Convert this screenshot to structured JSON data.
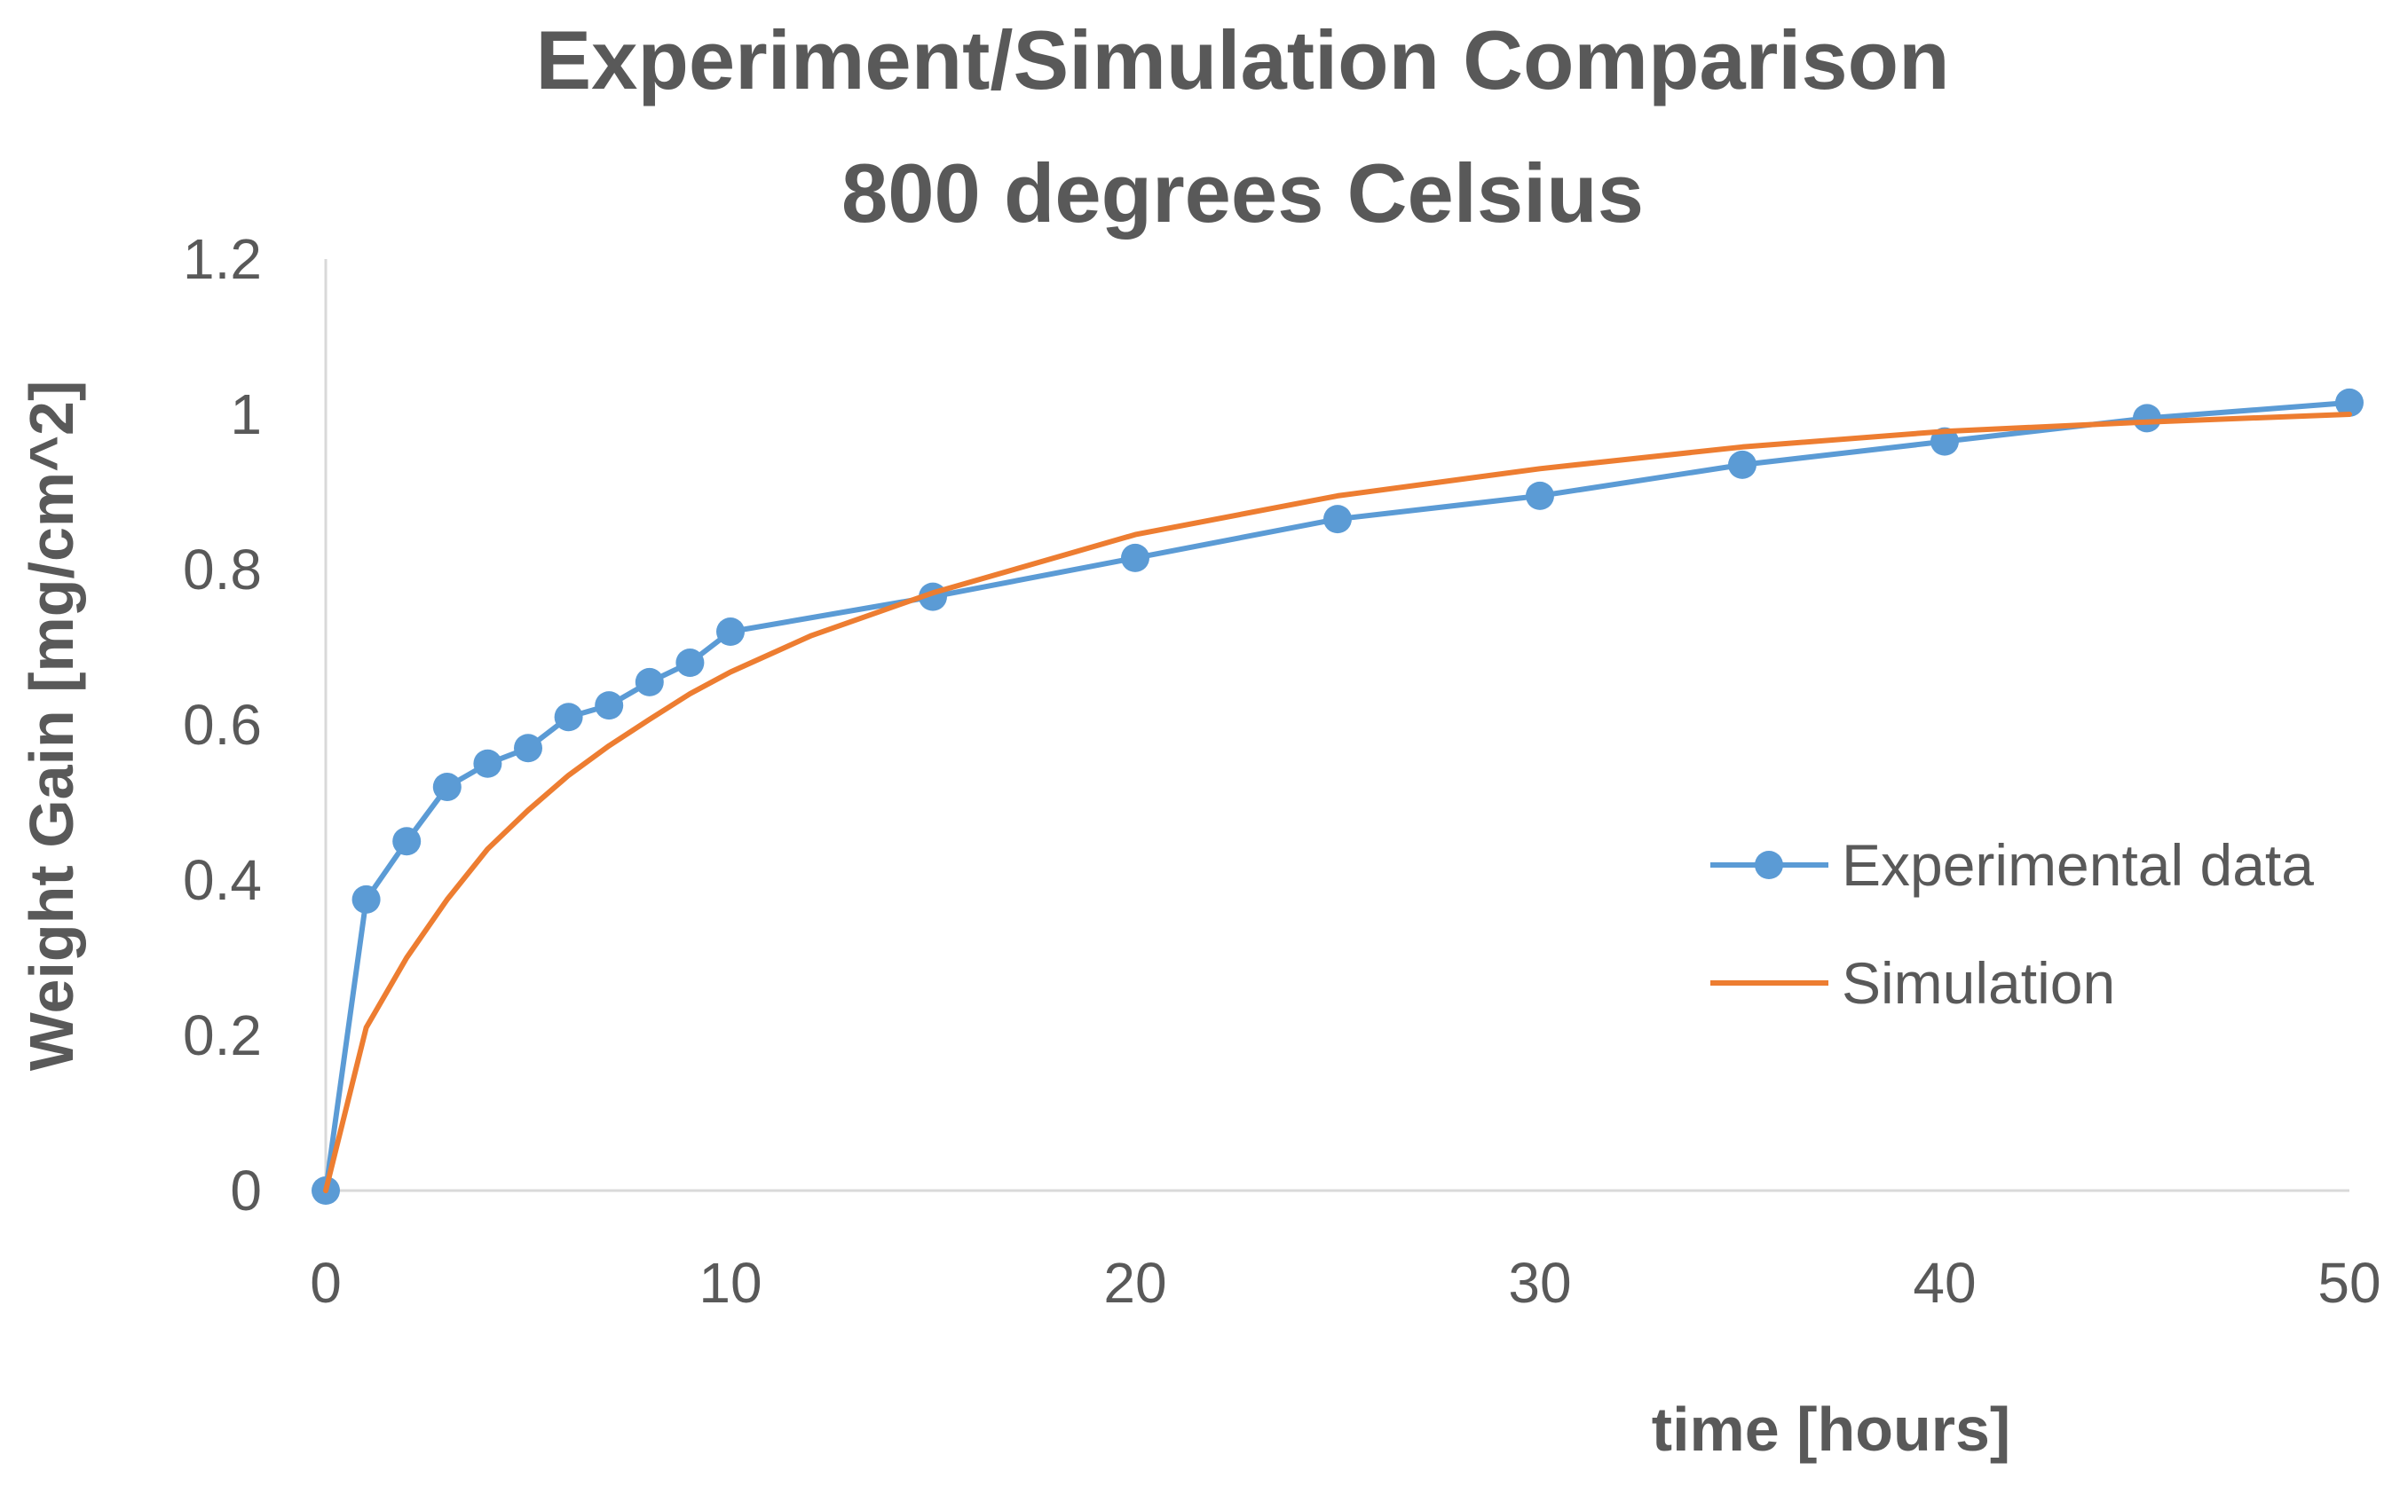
{
  "chart_data": {
    "type": "line",
    "title_lines": [
      "Experiment/Simulation Comparison",
      "800 degrees Celsius"
    ],
    "xlabel": "time [hours]",
    "ylabel": "Weight Gain [mg/cm^2]",
    "xlim": [
      0,
      50
    ],
    "ylim": [
      0,
      1.2
    ],
    "x_ticks": [
      0,
      10,
      20,
      30,
      40,
      50
    ],
    "x_tick_labels": [
      "0",
      "10",
      "20",
      "30",
      "40",
      "50"
    ],
    "y_ticks": [
      0,
      0.2,
      0.4,
      0.6,
      0.8,
      1,
      1.2
    ],
    "y_tick_labels": [
      "0",
      "0.2",
      "0.4",
      "0.6",
      "0.8",
      "1",
      "1.2"
    ],
    "grid": false,
    "legend_position": "right",
    "series": [
      {
        "name": "Experimental data",
        "color": "#5b9bd5",
        "markers": true,
        "x": [
          0,
          1,
          2,
          3,
          4,
          5,
          6,
          7,
          8,
          9,
          10,
          15,
          20,
          25,
          30,
          35,
          40,
          45,
          50
        ],
        "y": [
          0,
          0.375,
          0.45,
          0.52,
          0.55,
          0.57,
          0.61,
          0.625,
          0.655,
          0.68,
          0.72,
          0.765,
          0.815,
          0.865,
          0.895,
          0.935,
          0.965,
          0.995,
          1.015
        ]
      },
      {
        "name": "Simulation",
        "color": "#ed7d31",
        "markers": false,
        "x": [
          0,
          1,
          2,
          3,
          4,
          5,
          6,
          7,
          8,
          9,
          10,
          12,
          15,
          20,
          25,
          30,
          35,
          40,
          45,
          50
        ],
        "y": [
          0,
          0.21,
          0.3,
          0.375,
          0.44,
          0.49,
          0.535,
          0.573,
          0.607,
          0.64,
          0.668,
          0.715,
          0.77,
          0.845,
          0.895,
          0.93,
          0.958,
          0.978,
          0.99,
          1.0
        ]
      }
    ]
  }
}
